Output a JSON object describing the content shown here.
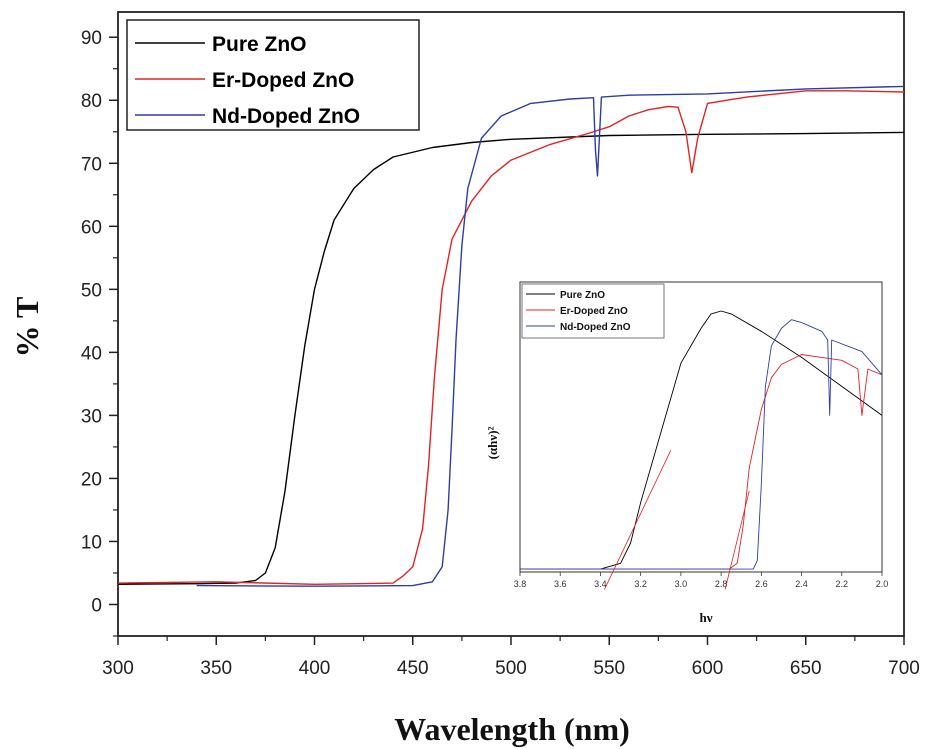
{
  "chart_data": [
    {
      "type": "line",
      "xlabel": "Wavelength (nm)",
      "ylabel": "% T",
      "xlim": [
        300,
        700
      ],
      "ylim": [
        -5,
        94
      ],
      "x_ticks": [
        300,
        350,
        400,
        450,
        500,
        550,
        600,
        650,
        700
      ],
      "y_ticks": [
        0,
        10,
        20,
        30,
        40,
        50,
        60,
        70,
        80,
        90
      ],
      "legend_position": "top-left",
      "series": [
        {
          "name": "Pure ZnO",
          "color": "#000000",
          "points": [
            [
              300,
              3.2
            ],
            [
              340,
              3.3
            ],
            [
              360,
              3.4
            ],
            [
              370,
              3.8
            ],
            [
              375,
              5
            ],
            [
              380,
              9
            ],
            [
              385,
              18
            ],
            [
              390,
              30
            ],
            [
              395,
              41
            ],
            [
              400,
              50
            ],
            [
              405,
              56
            ],
            [
              410,
              61
            ],
            [
              420,
              66
            ],
            [
              430,
              69
            ],
            [
              440,
              71
            ],
            [
              460,
              72.5
            ],
            [
              480,
              73.3
            ],
            [
              500,
              73.8
            ],
            [
              550,
              74.4
            ],
            [
              600,
              74.6
            ],
            [
              650,
              74.7
            ],
            [
              700,
              74.9
            ]
          ]
        },
        {
          "name": "Er-Doped ZnO",
          "color": "#e32322",
          "points": [
            [
              300,
              3.4
            ],
            [
              350,
              3.6
            ],
            [
              400,
              3.2
            ],
            [
              440,
              3.4
            ],
            [
              445,
              4.5
            ],
            [
              450,
              6
            ],
            [
              455,
              12
            ],
            [
              458,
              22
            ],
            [
              461,
              36
            ],
            [
              465,
              50
            ],
            [
              470,
              58
            ],
            [
              480,
              64
            ],
            [
              490,
              68
            ],
            [
              500,
              70.5
            ],
            [
              520,
              73
            ],
            [
              540,
              74.8
            ],
            [
              550,
              75.8
            ],
            [
              560,
              77.5
            ],
            [
              570,
              78.5
            ],
            [
              580,
              79
            ],
            [
              585,
              78.9
            ],
            [
              589,
              75
            ],
            [
              592,
              68.5
            ],
            [
              595,
              74
            ],
            [
              600,
              79.5
            ],
            [
              610,
              80
            ],
            [
              620,
              80.5
            ],
            [
              650,
              81.5
            ],
            [
              670,
              81.5
            ],
            [
              700,
              81.3
            ]
          ]
        },
        {
          "name": "Nd-Doped ZnO",
          "color": "#2c3ea6",
          "points": [
            [
              340,
              3
            ],
            [
              400,
              2.9
            ],
            [
              450,
              3
            ],
            [
              460,
              3.6
            ],
            [
              465,
              6
            ],
            [
              468,
              15
            ],
            [
              470,
              28
            ],
            [
              472,
              42
            ],
            [
              475,
              57
            ],
            [
              478,
              66
            ],
            [
              485,
              74
            ],
            [
              495,
              77.5
            ],
            [
              510,
              79.5
            ],
            [
              530,
              80.2
            ],
            [
              542,
              80.4
            ],
            [
              543,
              72
            ],
            [
              544,
              68
            ],
            [
              546,
              80.5
            ],
            [
              560,
              80.8
            ],
            [
              600,
              81
            ],
            [
              650,
              81.8
            ],
            [
              700,
              82.2
            ]
          ]
        }
      ]
    },
    {
      "type": "line",
      "xlabel": "hν",
      "ylabel": "(αhν)²",
      "xlim": [
        3.8,
        2.0
      ],
      "ylim": [
        0,
        50
      ],
      "x_ticks": [
        3.8,
        3.6,
        3.4,
        3.2,
        3.0,
        2.8,
        2.6,
        2.4,
        2.2,
        2.0
      ],
      "x_tick_labels": [
        "3.8",
        "3.6",
        "3.4",
        "3.2",
        "3.0",
        "2.8",
        "2.6",
        "2.4",
        "2.2",
        "2.0"
      ],
      "legend_position": "top-left",
      "series": [
        {
          "name": "Pure ZnO",
          "color": "#000000",
          "points": [
            [
              3.8,
              0.5
            ],
            [
              3.4,
              0.5
            ],
            [
              3.3,
              1.5
            ],
            [
              3.25,
              5
            ],
            [
              3.2,
              12
            ],
            [
              3.1,
              24
            ],
            [
              3.0,
              36
            ],
            [
              2.9,
              42
            ],
            [
              2.85,
              44.5
            ],
            [
              2.8,
              45
            ],
            [
              2.75,
              44.5
            ],
            [
              2.6,
              41.5
            ],
            [
              2.4,
              37
            ],
            [
              2.2,
              32
            ],
            [
              2.0,
              27
            ]
          ]
        },
        {
          "name": "Er-Doped ZnO",
          "color": "#e32322",
          "points": [
            [
              3.8,
              0.5
            ],
            [
              2.76,
              0.5
            ],
            [
              2.72,
              1.5
            ],
            [
              2.69,
              8
            ],
            [
              2.66,
              18
            ],
            [
              2.6,
              28
            ],
            [
              2.55,
              33.5
            ],
            [
              2.5,
              35.8
            ],
            [
              2.4,
              37.5
            ],
            [
              2.3,
              37
            ],
            [
              2.2,
              36.5
            ],
            [
              2.12,
              35
            ],
            [
              2.1,
              27
            ],
            [
              2.07,
              35
            ],
            [
              2.0,
              34
            ]
          ]
        },
        {
          "name": "Nd-Doped ZnO",
          "color": "#2c3ea6",
          "points": [
            [
              3.8,
              0.5
            ],
            [
              2.64,
              0.5
            ],
            [
              2.62,
              2
            ],
            [
              2.6,
              15
            ],
            [
              2.58,
              32
            ],
            [
              2.55,
              39
            ],
            [
              2.5,
              42
            ],
            [
              2.45,
              43.5
            ],
            [
              2.4,
              43
            ],
            [
              2.3,
              41.5
            ],
            [
              2.27,
              40
            ],
            [
              2.26,
              27
            ],
            [
              2.25,
              40
            ],
            [
              2.1,
              38
            ],
            [
              2.0,
              34
            ]
          ]
        }
      ],
      "extrapolation_lines": [
        {
          "color": "#e32322",
          "from": [
            3.05,
            21
          ],
          "to": [
            3.38,
            -3
          ]
        },
        {
          "color": "#e32322",
          "from": [
            2.66,
            14
          ],
          "to": [
            2.78,
            -3
          ]
        }
      ]
    }
  ]
}
